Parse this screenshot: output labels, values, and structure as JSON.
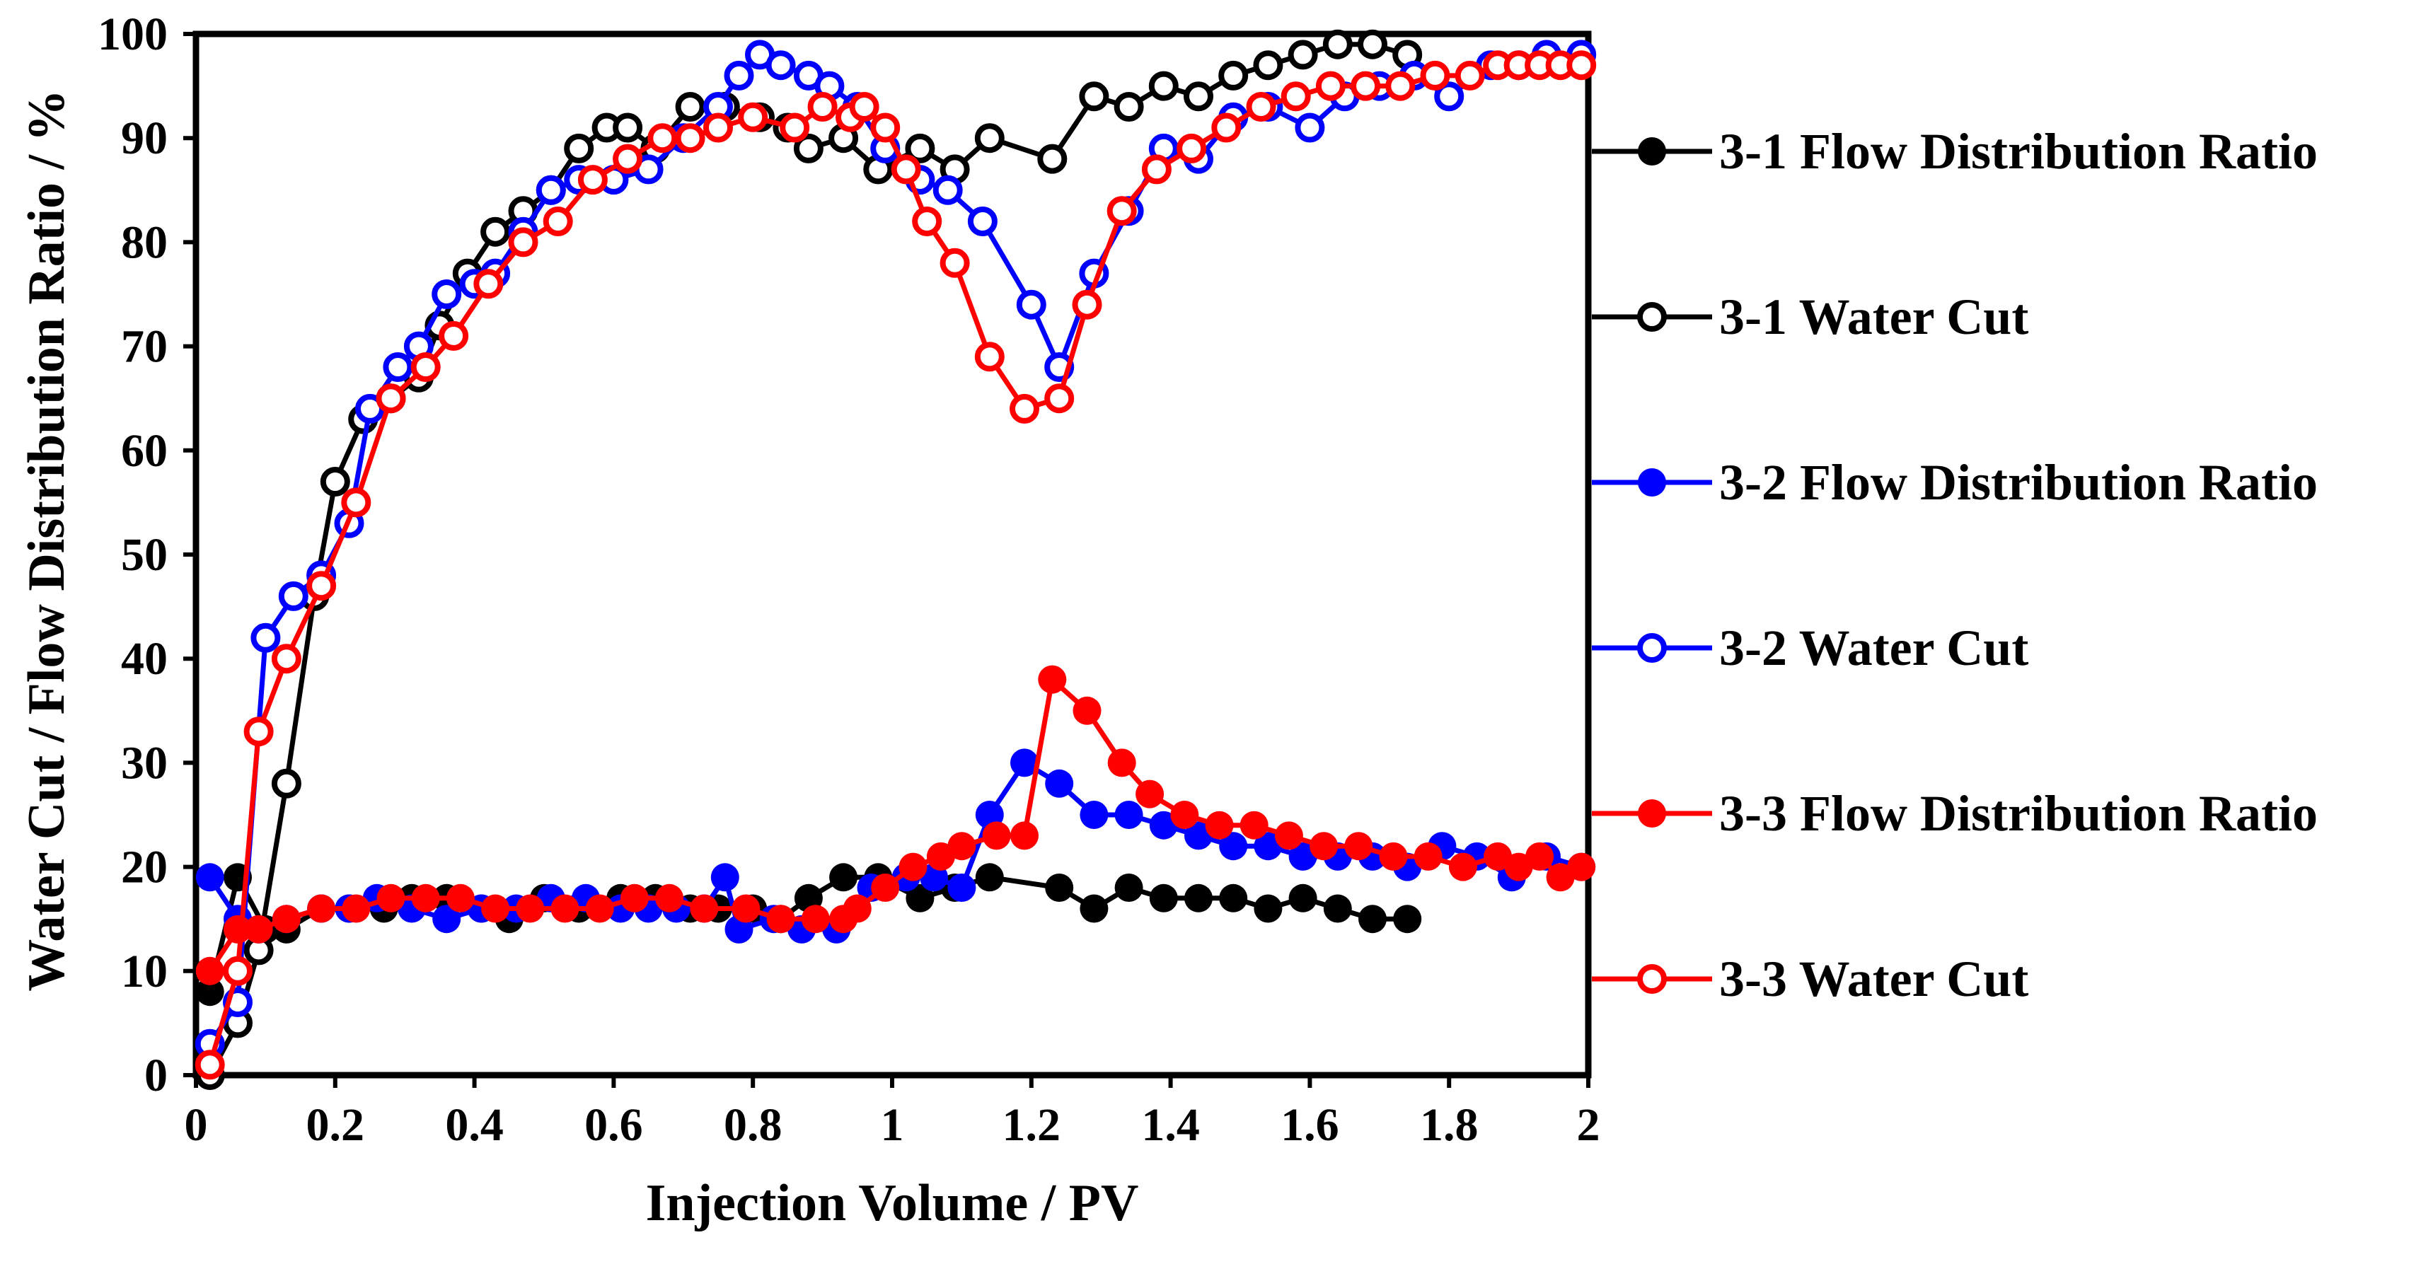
{
  "chart_data": {
    "type": "line",
    "title": "",
    "xlabel": "Injection Volume / PV",
    "ylabel": "Water Cut / Flow Distribution Ratio / %",
    "xlim": [
      0,
      2
    ],
    "ylim": [
      0,
      100
    ],
    "x_ticks": [
      0,
      0.2,
      0.4,
      0.6,
      0.8,
      1,
      1.2,
      1.4,
      1.6,
      1.8,
      2
    ],
    "x_tick_labels": [
      "0",
      "0.2",
      "0.4",
      "0.6",
      "0.8",
      "1",
      "1.2",
      "1.4",
      "1.6",
      "1.8",
      "2"
    ],
    "y_ticks": [
      0,
      10,
      20,
      30,
      40,
      50,
      60,
      70,
      80,
      90,
      100
    ],
    "y_tick_labels": [
      "0",
      "10",
      "20",
      "30",
      "40",
      "50",
      "60",
      "70",
      "80",
      "90",
      "100"
    ],
    "grid": false,
    "legend_position": "right",
    "series": [
      {
        "name": "3-1 Flow Distribution Ratio",
        "color": "#000000",
        "marker": "filled-circle",
        "x": [
          0.02,
          0.06,
          0.1,
          0.13,
          0.18,
          0.22,
          0.27,
          0.31,
          0.36,
          0.41,
          0.45,
          0.5,
          0.55,
          0.61,
          0.66,
          0.71,
          0.75,
          0.8,
          0.84,
          0.88,
          0.93,
          0.98,
          1.04,
          1.09,
          1.14,
          1.24,
          1.29,
          1.34,
          1.39,
          1.44,
          1.49,
          1.54,
          1.59,
          1.64,
          1.69,
          1.74
        ],
        "values": [
          8,
          19,
          14,
          14,
          16,
          16,
          16,
          17,
          17,
          16,
          15,
          17,
          16,
          17,
          17,
          16,
          16,
          16,
          15,
          17,
          19,
          19,
          17,
          18,
          19,
          18,
          16,
          18,
          17,
          17,
          17,
          16,
          17,
          16,
          15,
          15
        ]
      },
      {
        "name": "3-1 Water Cut",
        "color": "#000000",
        "marker": "open-circle",
        "x": [
          0.02,
          0.06,
          0.09,
          0.13,
          0.17,
          0.2,
          0.24,
          0.28,
          0.32,
          0.35,
          0.39,
          0.43,
          0.47,
          0.51,
          0.55,
          0.59,
          0.62,
          0.66,
          0.71,
          0.76,
          0.81,
          0.85,
          0.88,
          0.93,
          0.98,
          1.04,
          1.09,
          1.14,
          1.23,
          1.29,
          1.34,
          1.39,
          1.44,
          1.49,
          1.54,
          1.59,
          1.64,
          1.69,
          1.74
        ],
        "values": [
          0,
          5,
          12,
          28,
          46,
          57,
          63,
          65,
          67,
          72,
          77,
          81,
          83,
          85,
          89,
          91,
          91,
          89,
          93,
          93,
          92,
          91,
          89,
          90,
          87,
          89,
          87,
          90,
          88,
          94,
          93,
          95,
          94,
          96,
          97,
          98,
          99,
          99,
          98
        ]
      },
      {
        "name": "3-2 Flow Distribution Ratio",
        "color": "#0000ff",
        "marker": "filled-circle",
        "x": [
          0.02,
          0.06,
          0.09,
          0.13,
          0.18,
          0.22,
          0.26,
          0.31,
          0.36,
          0.41,
          0.46,
          0.51,
          0.56,
          0.61,
          0.65,
          0.69,
          0.73,
          0.76,
          0.78,
          0.83,
          0.87,
          0.92,
          0.97,
          1.02,
          1.06,
          1.1,
          1.14,
          1.19,
          1.24,
          1.29,
          1.34,
          1.39,
          1.44,
          1.49,
          1.54,
          1.59,
          1.64,
          1.69,
          1.74,
          1.79,
          1.84,
          1.89,
          1.94,
          1.99
        ],
        "values": [
          19,
          15,
          14,
          15,
          16,
          16,
          17,
          16,
          15,
          16,
          16,
          17,
          17,
          16,
          16,
          16,
          16,
          19,
          14,
          15,
          14,
          14,
          18,
          19,
          19,
          18,
          25,
          30,
          28,
          25,
          25,
          24,
          23,
          22,
          22,
          21,
          21,
          21,
          20,
          22,
          21,
          19,
          21,
          20
        ]
      },
      {
        "name": "3-2 Water Cut",
        "color": "#0000ff",
        "marker": "open-circle",
        "x": [
          0.02,
          0.06,
          0.1,
          0.14,
          0.18,
          0.22,
          0.25,
          0.29,
          0.32,
          0.36,
          0.4,
          0.43,
          0.47,
          0.51,
          0.55,
          0.6,
          0.65,
          0.7,
          0.75,
          0.78,
          0.81,
          0.84,
          0.88,
          0.91,
          0.95,
          0.99,
          1.04,
          1.08,
          1.13,
          1.2,
          1.24,
          1.29,
          1.34,
          1.39,
          1.44,
          1.49,
          1.54,
          1.6,
          1.65,
          1.7,
          1.75,
          1.8,
          1.86,
          1.9,
          1.94,
          1.99
        ],
        "values": [
          3,
          7,
          42,
          46,
          48,
          53,
          64,
          68,
          70,
          75,
          76,
          77,
          81,
          85,
          86,
          86,
          87,
          90,
          93,
          96,
          98,
          97,
          96,
          95,
          93,
          89,
          86,
          85,
          82,
          74,
          68,
          77,
          83,
          89,
          88,
          92,
          93,
          91,
          94,
          95,
          96,
          94,
          97,
          97,
          98,
          98
        ]
      },
      {
        "name": "3-3 Flow Distribution Ratio",
        "color": "#ff0000",
        "marker": "filled-circle",
        "x": [
          0.02,
          0.06,
          0.09,
          0.13,
          0.18,
          0.23,
          0.28,
          0.33,
          0.38,
          0.43,
          0.48,
          0.53,
          0.58,
          0.63,
          0.68,
          0.73,
          0.79,
          0.84,
          0.89,
          0.93,
          0.95,
          0.99,
          1.03,
          1.07,
          1.1,
          1.15,
          1.19,
          1.23,
          1.28,
          1.33,
          1.37,
          1.42,
          1.47,
          1.52,
          1.57,
          1.62,
          1.67,
          1.72,
          1.77,
          1.82,
          1.87,
          1.9,
          1.93,
          1.96,
          1.99
        ],
        "values": [
          10,
          14,
          14,
          15,
          16,
          16,
          17,
          17,
          17,
          16,
          16,
          16,
          16,
          17,
          17,
          16,
          16,
          15,
          15,
          15,
          16,
          18,
          20,
          21,
          22,
          23,
          23,
          38,
          35,
          30,
          27,
          25,
          24,
          24,
          23,
          22,
          22,
          21,
          21,
          20,
          21,
          20,
          21,
          19,
          20
        ]
      },
      {
        "name": "3-3 Water Cut",
        "color": "#ff0000",
        "marker": "open-circle",
        "x": [
          0.02,
          0.06,
          0.09,
          0.13,
          0.18,
          0.23,
          0.28,
          0.33,
          0.37,
          0.42,
          0.47,
          0.52,
          0.57,
          0.62,
          0.67,
          0.71,
          0.75,
          0.8,
          0.86,
          0.9,
          0.94,
          0.96,
          0.99,
          1.02,
          1.05,
          1.09,
          1.14,
          1.19,
          1.24,
          1.28,
          1.33,
          1.38,
          1.43,
          1.48,
          1.53,
          1.58,
          1.63,
          1.68,
          1.73,
          1.78,
          1.83,
          1.87,
          1.9,
          1.93,
          1.96,
          1.99
        ],
        "values": [
          1,
          10,
          33,
          40,
          47,
          55,
          65,
          68,
          71,
          76,
          80,
          82,
          86,
          88,
          90,
          90,
          91,
          92,
          91,
          93,
          92,
          93,
          91,
          87,
          82,
          78,
          69,
          64,
          65,
          74,
          83,
          87,
          89,
          91,
          93,
          94,
          95,
          95,
          95,
          96,
          96,
          97,
          97,
          97,
          97,
          97
        ]
      }
    ]
  }
}
